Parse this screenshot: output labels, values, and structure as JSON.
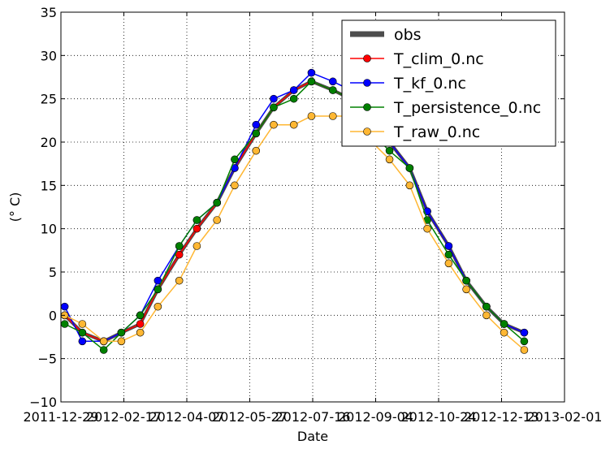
{
  "chart_data": {
    "type": "line",
    "title": "",
    "xlabel": "Date",
    "ylabel": "(° C)",
    "xlim": [
      "2011-12-29",
      "2013-02-01"
    ],
    "ylim": [
      -10,
      35
    ],
    "grid": true,
    "legend_position": "top-right",
    "x_ticks": [
      "2011-12-29",
      "2012-02-17",
      "2012-04-07",
      "2012-05-27",
      "2012-07-16",
      "2012-09-04",
      "2012-10-24",
      "2012-12-13",
      "2013-02-01"
    ],
    "y_ticks": [
      -10,
      -5,
      0,
      5,
      10,
      15,
      20,
      25,
      30,
      35
    ],
    "x": [
      "2012-01-01",
      "2012-01-15",
      "2012-02-01",
      "2012-02-15",
      "2012-03-01",
      "2012-03-15",
      "2012-04-01",
      "2012-04-15",
      "2012-05-01",
      "2012-05-15",
      "2012-06-01",
      "2012-06-15",
      "2012-07-01",
      "2012-07-15",
      "2012-08-01",
      "2012-08-15",
      "2012-09-01",
      "2012-09-15",
      "2012-10-01",
      "2012-10-15",
      "2012-11-01",
      "2012-11-15",
      "2012-12-01",
      "2012-12-15",
      "2012-12-31"
    ],
    "series": [
      {
        "name": "obs",
        "color": "#4d4d4d",
        "marker": "none",
        "values": [
          0,
          -2,
          -3,
          -2,
          -1,
          3,
          7,
          10,
          13,
          17,
          21,
          24,
          26,
          27,
          26,
          25,
          22,
          20,
          17,
          12,
          8,
          4,
          1,
          -1,
          -2
        ]
      },
      {
        "name": "T_clim_0.nc",
        "color": "#ff0000",
        "marker": "circle",
        "values": [
          0,
          -2,
          -3,
          -2,
          -1,
          3,
          7,
          10,
          13,
          17,
          21,
          24,
          26,
          27,
          26,
          25,
          22,
          20,
          17,
          12,
          8,
          4,
          1,
          -1,
          -2
        ]
      },
      {
        "name": "T_kf_0.nc",
        "color": "#0000ff",
        "marker": "circle",
        "values": [
          1,
          -3,
          -3,
          -2,
          0,
          4,
          8,
          11,
          13,
          17,
          22,
          25,
          26,
          28,
          27,
          26,
          22,
          20,
          17,
          12,
          8,
          4,
          1,
          -1,
          -2
        ]
      },
      {
        "name": "T_persistence_0.nc",
        "color": "#008000",
        "marker": "circle",
        "values": [
          -1,
          -2,
          -4,
          -2,
          0,
          3,
          8,
          11,
          13,
          18,
          21,
          24,
          25,
          27,
          26,
          25,
          21,
          19,
          17,
          11,
          7,
          4,
          1,
          -1,
          -3
        ]
      },
      {
        "name": "T_raw_0.nc",
        "color": "#ffb733",
        "marker": "circle",
        "values": [
          0,
          -1,
          -3,
          -3,
          -2,
          1,
          4,
          8,
          11,
          15,
          19,
          22,
          22,
          23,
          23,
          23,
          20,
          18,
          15,
          10,
          6,
          3,
          0,
          -2,
          -4
        ]
      }
    ]
  }
}
